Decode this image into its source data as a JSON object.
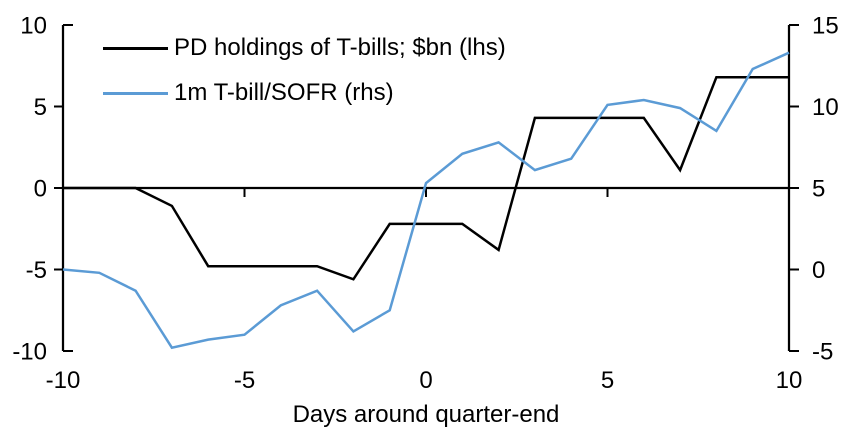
{
  "chart_data": {
    "type": "line",
    "x": [
      -10,
      -9,
      -8,
      -7,
      -6,
      -5,
      -4,
      -3,
      -2,
      -1,
      0,
      1,
      2,
      3,
      4,
      5,
      6,
      7,
      8,
      9,
      10
    ],
    "xlabel": "Days around quarter-end",
    "x_range": [
      -10,
      10
    ],
    "x_ticks": [
      -10,
      -5,
      0,
      5,
      10
    ],
    "left_axis": {
      "ticks": [
        10,
        5,
        0,
        -5,
        -10
      ],
      "range": [
        -10,
        10
      ]
    },
    "right_axis": {
      "ticks": [
        15,
        10,
        5,
        0,
        -5
      ],
      "range": [
        -5,
        15
      ]
    },
    "grid": false,
    "legend_position": "top-left",
    "series": [
      {
        "name": "PD holdings of T-bills; $bn (lhs)",
        "axis": "left",
        "color": "#000000",
        "values": [
          0.0,
          0.0,
          0.0,
          -1.1,
          -4.8,
          -4.8,
          -4.8,
          -4.8,
          -5.6,
          -2.2,
          -2.2,
          -2.2,
          -3.8,
          4.3,
          4.3,
          4.3,
          4.3,
          1.1,
          6.8,
          6.8,
          6.8
        ]
      },
      {
        "name": "1m T-bill/SOFR (rhs)",
        "axis": "right",
        "color": "#5B9BD5",
        "values": [
          0.0,
          -0.2,
          -1.3,
          -4.8,
          -4.3,
          -4.0,
          -2.2,
          -1.3,
          -3.8,
          -2.5,
          5.3,
          7.1,
          7.8,
          6.1,
          6.8,
          10.1,
          10.4,
          9.9,
          8.5,
          12.3,
          13.3
        ]
      }
    ]
  }
}
